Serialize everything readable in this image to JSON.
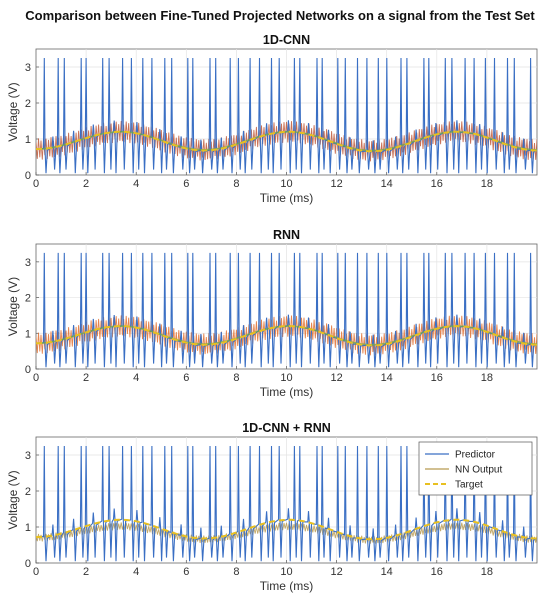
{
  "figure": {
    "title": "Comparison between Fine-Tuned Projected Networks on a signal from the Test Set"
  },
  "chart_data": [
    {
      "type": "line",
      "title": "1D-CNN",
      "xlabel": "Time (ms)",
      "ylabel": "Voltage (V)",
      "xlim": [
        0,
        20
      ],
      "ylim": [
        0,
        3.5
      ],
      "xticks": [
        "0",
        "2",
        "4",
        "6",
        "8",
        "10",
        "12",
        "14",
        "16",
        "18"
      ],
      "yticks": [
        "0",
        "1",
        "2",
        "3"
      ],
      "grid": true,
      "legend": null,
      "series": [
        {
          "name": "Predictor",
          "color": "#3a6fc4",
          "style": "solid",
          "envelope": {
            "x": [
              0,
              3.4,
              6.7,
              10.1,
              13.4,
              16.8,
              20
            ],
            "y": [
              0.72,
              1.22,
              0.68,
              1.22,
              0.66,
              1.22,
              0.68
            ]
          },
          "spike_peak": 3.25,
          "trough": 0.05
        },
        {
          "name": "NN Output",
          "color": "#c0593a",
          "style": "solid",
          "x": [
            0,
            3.4,
            6.7,
            10.1,
            13.4,
            16.8,
            20
          ],
          "y": [
            0.72,
            1.2,
            0.7,
            1.2,
            0.68,
            1.2,
            0.7
          ]
        },
        {
          "name": "Target",
          "color": "#e8c020",
          "style": "dashed",
          "x": [
            0,
            3.4,
            6.7,
            10.1,
            13.4,
            16.8,
            20
          ],
          "y": [
            0.72,
            1.2,
            0.68,
            1.2,
            0.66,
            1.2,
            0.68
          ]
        }
      ]
    },
    {
      "type": "line",
      "title": "RNN",
      "xlabel": "Time (ms)",
      "ylabel": "Voltage (V)",
      "xlim": [
        0,
        20
      ],
      "ylim": [
        0,
        3.5
      ],
      "xticks": [
        "0",
        "2",
        "4",
        "6",
        "8",
        "10",
        "12",
        "14",
        "16",
        "18"
      ],
      "yticks": [
        "0",
        "1",
        "2",
        "3"
      ],
      "grid": true,
      "legend": null,
      "series": [
        {
          "name": "Predictor",
          "color": "#3a6fc4",
          "style": "solid",
          "envelope": {
            "x": [
              0,
              3.4,
              6.7,
              10.1,
              13.4,
              16.8,
              20
            ],
            "y": [
              0.72,
              1.22,
              0.68,
              1.22,
              0.66,
              1.22,
              0.68
            ]
          },
          "spike_peak": 3.25,
          "trough": 0.05
        },
        {
          "name": "NN Output",
          "color": "#e07030",
          "style": "solid",
          "x": [
            0,
            3.4,
            6.7,
            10.1,
            13.4,
            16.8,
            20
          ],
          "y": [
            0.72,
            1.2,
            0.7,
            1.2,
            0.68,
            1.2,
            0.7
          ]
        },
        {
          "name": "Target",
          "color": "#e8c020",
          "style": "dashed",
          "x": [
            0,
            3.4,
            6.7,
            10.1,
            13.4,
            16.8,
            20
          ],
          "y": [
            0.72,
            1.2,
            0.68,
            1.2,
            0.66,
            1.2,
            0.68
          ]
        }
      ]
    },
    {
      "type": "line",
      "title": "1D-CNN + RNN",
      "xlabel": "Time (ms)",
      "ylabel": "Voltage (V)",
      "xlim": [
        0,
        20
      ],
      "ylim": [
        0,
        3.5
      ],
      "xticks": [
        "0",
        "2",
        "4",
        "6",
        "8",
        "10",
        "12",
        "14",
        "16",
        "18"
      ],
      "yticks": [
        "0",
        "1",
        "2",
        "3"
      ],
      "grid": true,
      "legend": "top-right",
      "series": [
        {
          "name": "Predictor",
          "color": "#3a6fc4",
          "style": "solid",
          "envelope": {
            "x": [
              0,
              3.4,
              6.7,
              10.1,
              13.4,
              16.8,
              20
            ],
            "y": [
              0.72,
              1.22,
              0.68,
              1.22,
              0.66,
              1.22,
              0.68
            ]
          },
          "spike_peak": 3.25,
          "trough": 0.05
        },
        {
          "name": "NN Output",
          "color": "#b89a50",
          "style": "solid",
          "x": [
            0,
            3.4,
            6.7,
            10.1,
            13.4,
            16.8,
            20
          ],
          "y": [
            0.7,
            1.02,
            0.66,
            1.02,
            0.64,
            1.02,
            0.66
          ]
        },
        {
          "name": "Target",
          "color": "#e8c020",
          "style": "dashed",
          "x": [
            0,
            3.4,
            6.7,
            10.1,
            13.4,
            16.8,
            20
          ],
          "y": [
            0.72,
            1.2,
            0.68,
            1.2,
            0.66,
            1.2,
            0.68
          ]
        }
      ]
    }
  ]
}
